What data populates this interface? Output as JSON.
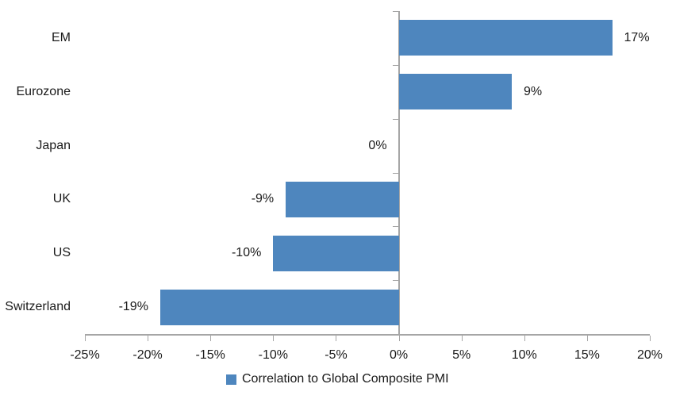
{
  "chart_data": {
    "type": "bar",
    "orientation": "horizontal",
    "title": "",
    "xlabel": "",
    "ylabel": "",
    "categories": [
      "EM",
      "Eurozone",
      "Japan",
      "UK",
      "US",
      "Switzerland"
    ],
    "values": [
      17,
      9,
      0,
      -9,
      -10,
      -19
    ],
    "value_labels": [
      "17%",
      "9%",
      "0%",
      "-9%",
      "-10%",
      "-19%"
    ],
    "series": [
      {
        "name": "Correlation to Global Composite PMI",
        "values": [
          17,
          9,
          0,
          -9,
          -10,
          -19
        ]
      }
    ],
    "xlim": [
      -25,
      20
    ],
    "x_tick_step": 5,
    "x_tick_labels": [
      "-25%",
      "-20%",
      "-15%",
      "-10%",
      "-5%",
      "0%",
      "5%",
      "10%",
      "15%",
      "20%"
    ],
    "grid": false,
    "legend": {
      "label": "Correlation to Global Composite PMI",
      "position": "bottom"
    },
    "colors": {
      "bar": "#4E86BE",
      "axis": "#A6A6A6",
      "text": "#1A1A1A",
      "background": "#FFFFFF"
    }
  }
}
